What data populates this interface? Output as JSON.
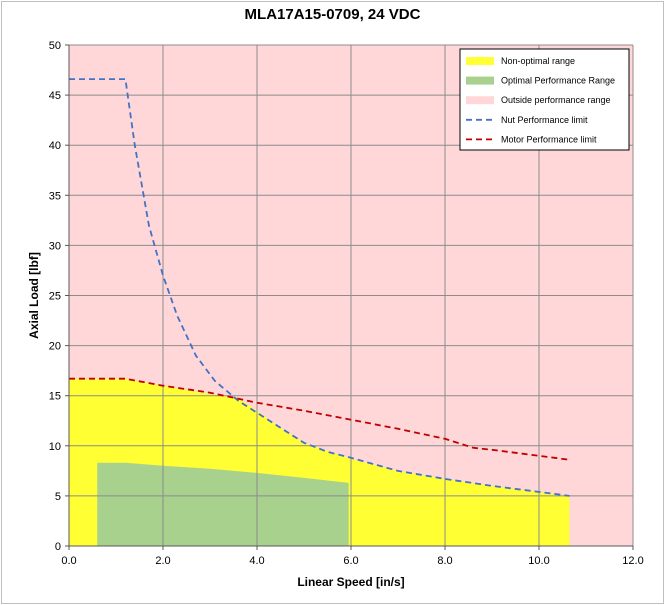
{
  "chart_data": {
    "type": "area",
    "title": "MLA17A15-0709, 24 VDC",
    "xlabel": "Linear Speed [in/s]",
    "ylabel": "Axial Load [lbf]",
    "xlim": [
      0,
      12
    ],
    "ylim": [
      0,
      50
    ],
    "x_ticks": [
      0,
      2,
      4,
      6,
      8,
      10,
      12
    ],
    "x_tick_labels": [
      "0.0",
      "2.0",
      "4.0",
      "6.0",
      "8.0",
      "10.0",
      "12.0"
    ],
    "y_ticks": [
      0,
      5,
      10,
      15,
      20,
      25,
      30,
      35,
      40,
      45,
      50
    ],
    "y_tick_labels": [
      "0",
      "5",
      "10",
      "15",
      "20",
      "25",
      "30",
      "35",
      "40",
      "45",
      "50"
    ],
    "grid": true,
    "legend_position": "top-right",
    "background_region": {
      "name": "Outside performance range",
      "color": "#ffd7d9"
    },
    "areas": [
      {
        "name": "Non-optimal range",
        "color": "#ffff33",
        "points": [
          [
            0,
            0
          ],
          [
            0,
            16.7
          ],
          [
            1.2,
            16.7
          ],
          [
            2,
            16
          ],
          [
            3,
            15.2
          ],
          [
            3.6,
            14.8
          ],
          [
            4,
            13.5
          ],
          [
            4.5,
            11.8
          ],
          [
            5,
            10.3
          ],
          [
            5.5,
            9.5
          ],
          [
            6,
            8.7
          ],
          [
            7,
            7.5
          ],
          [
            8,
            6.7
          ],
          [
            9,
            6.0
          ],
          [
            10,
            5.4
          ],
          [
            10.65,
            5.0
          ],
          [
            10.65,
            0
          ]
        ]
      },
      {
        "name": "Optimal Performance Range",
        "color": "#a9d18e",
        "points": [
          [
            0.6,
            0
          ],
          [
            0.6,
            8.3
          ],
          [
            1.2,
            8.3
          ],
          [
            2,
            8.0
          ],
          [
            3,
            7.7
          ],
          [
            4,
            7.3
          ],
          [
            5,
            6.8
          ],
          [
            5.95,
            6.3
          ],
          [
            5.95,
            0
          ]
        ]
      }
    ],
    "series": [
      {
        "name": "Nut Performance limit",
        "color": "#4472c4",
        "style": "dashed",
        "x": [
          0,
          1.2,
          1.4,
          1.7,
          2.0,
          2.3,
          2.7,
          3.1,
          3.6,
          4.0,
          4.5,
          5.0,
          5.5,
          6.0,
          7.0,
          8.0,
          9.0,
          10.0,
          10.65
        ],
        "y": [
          46.6,
          46.6,
          40.0,
          32.0,
          27.0,
          23.0,
          19.0,
          16.5,
          14.5,
          13.3,
          11.8,
          10.3,
          9.4,
          8.8,
          7.5,
          6.7,
          6.0,
          5.4,
          5.0
        ]
      },
      {
        "name": "Motor Performance limit",
        "color": "#c00000",
        "style": "dashed",
        "x": [
          0,
          1.2,
          2.0,
          3.0,
          4.0,
          5.0,
          6.0,
          7.0,
          8.0,
          8.6,
          9.0,
          10.0,
          10.65
        ],
        "y": [
          16.7,
          16.7,
          16.0,
          15.3,
          14.3,
          13.5,
          12.6,
          11.7,
          10.7,
          9.8,
          9.6,
          9.0,
          8.6
        ]
      }
    ],
    "legend": [
      {
        "label": "Non-optimal range",
        "kind": "patch",
        "color": "#ffff33"
      },
      {
        "label": "Optimal Performance Range",
        "kind": "patch",
        "color": "#a9d18e"
      },
      {
        "label": "Outside performance range",
        "kind": "patch",
        "color": "#ffd7d9"
      },
      {
        "label": "Nut Performance limit",
        "kind": "dash",
        "color": "#4472c4"
      },
      {
        "label": "Motor Performance limit",
        "kind": "dash",
        "color": "#c00000"
      }
    ]
  }
}
